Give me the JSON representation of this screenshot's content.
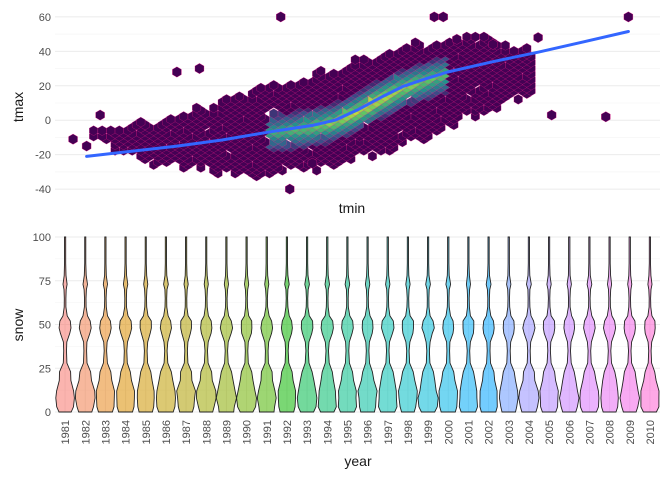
{
  "chart_data": [
    {
      "type": "hexbin",
      "xlabel": "tmin",
      "ylabel": "tmax",
      "xlim": [
        -62,
        72
      ],
      "ylim": [
        -44,
        64
      ],
      "yticks": [
        -40,
        -20,
        0,
        20,
        40,
        60
      ],
      "xticks": [],
      "grid": true,
      "legend": "none",
      "hex_fill_low": "#440154",
      "hex_fill_high": "#fde725",
      "hex_outline": "#ff1f8f",
      "smooth_color": "#3366ff",
      "smooth": {
        "x": [
          -55,
          -45,
          -35,
          -25,
          -15,
          -5,
          0,
          5,
          10,
          15,
          20,
          25,
          35,
          45,
          55,
          65
        ],
        "y": [
          -21,
          -18,
          -15,
          -11.5,
          -7,
          -3,
          0,
          6,
          13,
          19.5,
          24,
          28,
          34,
          39.5,
          45.5,
          51.5
        ]
      },
      "hex_extent": {
        "x": [
          -52,
          -40,
          -30,
          -20,
          -10,
          0,
          10,
          20,
          30,
          40
        ],
        "ymin": [
          -12,
          -24,
          -28,
          -32,
          -29,
          -25,
          -18,
          -10,
          2,
          14
        ],
        "ymax": [
          -8,
          0,
          6,
          14,
          22,
          30,
          38,
          44,
          48,
          42
        ]
      },
      "outlier_hexes": {
        "x": [
          -58,
          -55,
          -52,
          -35,
          -30,
          -12,
          -10,
          -5,
          22,
          24,
          27,
          35,
          45,
          48,
          60,
          65
        ],
        "y": [
          -11,
          -15,
          3,
          28,
          30,
          60,
          -40,
          -25,
          60,
          60,
          47,
          44,
          48,
          3,
          2,
          60
        ]
      },
      "density_core": {
        "x": [
          -15,
          25
        ],
        "y": [
          -6,
          30
        ]
      }
    },
    {
      "type": "violin",
      "xlabel": "year",
      "ylabel": "snow",
      "ylim": [
        0,
        100
      ],
      "yticks": [
        0,
        25,
        50,
        75,
        100
      ],
      "grid": true,
      "legend": "none",
      "categories": [
        "1981",
        "1982",
        "1983",
        "1984",
        "1985",
        "1986",
        "1987",
        "1988",
        "1989",
        "1990",
        "1991",
        "1992",
        "1993",
        "1994",
        "1995",
        "1996",
        "1997",
        "1998",
        "1999",
        "2000",
        "2001",
        "2002",
        "2003",
        "2004",
        "2005",
        "2006",
        "2007",
        "2008",
        "2009",
        "2010"
      ],
      "fill_colors": [
        "#f8766d",
        "#f07e4d",
        "#e7861b",
        "#db8e00",
        "#ce9500",
        "#bf9c00",
        "#ae9f00",
        "#9da700",
        "#88ac00",
        "#6fb100",
        "#4db500",
        "#0cb702",
        "#00b94a",
        "#00bb6b",
        "#00bd86",
        "#00be9c",
        "#00bfb1",
        "#00bdc4",
        "#00bad7",
        "#00b4e7",
        "#00acf5",
        "#00a2fe",
        "#6a99ff",
        "#9590ff",
        "#b385ff",
        "#c77cff",
        "#d972fc",
        "#e76bf3",
        "#f265e7",
        "#fd61d1"
      ],
      "density_profile": {
        "y": [
          0,
          3,
          8,
          12,
          18,
          23,
          28,
          35,
          40,
          45,
          48,
          52,
          55,
          60,
          65,
          70,
          73,
          78,
          85,
          92,
          97,
          100
        ],
        "width": [
          0.72,
          0.92,
          1.0,
          0.95,
          0.68,
          0.55,
          0.2,
          0.14,
          0.2,
          0.5,
          0.62,
          0.55,
          0.24,
          0.1,
          0.08,
          0.12,
          0.24,
          0.1,
          0.05,
          0.04,
          0.03,
          0.01
        ]
      }
    }
  ]
}
